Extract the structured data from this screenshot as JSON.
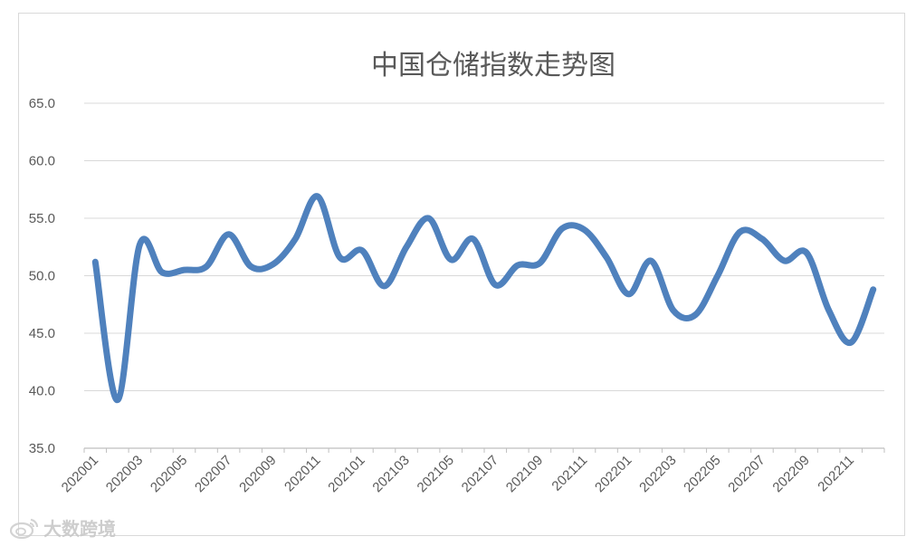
{
  "chart_data": {
    "type": "line",
    "title": "中国仓储指数走势图",
    "xlabel": "",
    "ylabel": "",
    "ylim": [
      35.0,
      65.0
    ],
    "yticks": [
      "35.0",
      "40.0",
      "45.0",
      "50.0",
      "55.0",
      "60.0",
      "65.0"
    ],
    "grid": true,
    "legend": "none",
    "line_color": "#4f81bd",
    "x": [
      "202001",
      "202002",
      "202003",
      "202004",
      "202005",
      "202006",
      "202007",
      "202008",
      "202009",
      "202010",
      "202011",
      "202012",
      "202101",
      "202102",
      "202103",
      "202104",
      "202105",
      "202106",
      "202107",
      "202108",
      "202109",
      "202110",
      "202111",
      "202112",
      "202201",
      "202202",
      "202203",
      "202204",
      "202205",
      "202206",
      "202207",
      "202208",
      "202209",
      "202210",
      "202211",
      "202212"
    ],
    "x_tick_labels": [
      "202001",
      "202003",
      "202005",
      "202007",
      "202009",
      "202011",
      "202101",
      "202103",
      "202105",
      "202107",
      "202109",
      "202111",
      "202201",
      "202203",
      "202205",
      "202207",
      "202209",
      "202211"
    ],
    "series": [
      {
        "values": [
          51.2,
          39.2,
          52.7,
          50.3,
          50.5,
          50.8,
          53.6,
          50.8,
          51.0,
          53.2,
          56.9,
          51.6,
          52.2,
          49.1,
          52.5,
          55.0,
          51.4,
          53.2,
          49.2,
          50.9,
          51.1,
          54.1,
          54.0,
          51.6,
          48.4,
          51.3,
          47.0,
          46.6,
          50.0,
          53.8,
          53.2,
          51.3,
          52.0,
          47.0,
          44.2,
          48.8
        ]
      }
    ]
  },
  "watermark": {
    "text": "大数跨境",
    "icon": "weibo-logo-icon"
  }
}
